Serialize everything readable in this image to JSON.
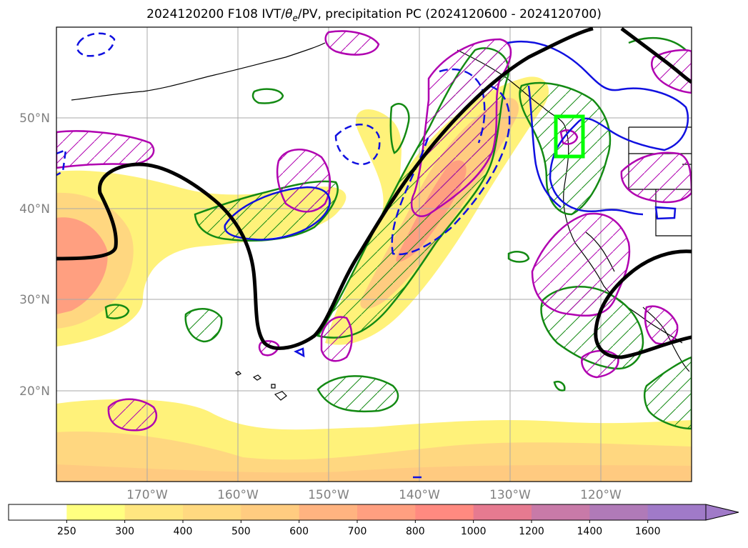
{
  "title": {
    "prefix": "2024120200 F108 IVT/",
    "theta": "θ",
    "theta_sub": "e",
    "suffix": "/PV, precipitation PC (2024120600 - 2024120700)"
  },
  "map": {
    "lat_labels": [
      "50°N",
      "40°N",
      "30°N",
      "20°N"
    ],
    "lon_labels": [
      "170°W",
      "160°W",
      "150°W",
      "140°W",
      "130°W",
      "120°W"
    ],
    "field_colors": {
      "ivt_fill": "#fff27a",
      "ivt_mid": "#ffd27a",
      "ivt_core": "#ff8f70",
      "pv_contour": "#000000",
      "precip_green": "#138a13",
      "theta_blue": "#1010e0",
      "theta_magenta": "#b000b0",
      "highlight_box": "#00ff00",
      "coastline": "#000000",
      "grid": "#a0a0a0"
    }
  },
  "colorbar": {
    "ticks": [
      "250",
      "300",
      "400",
      "500",
      "600",
      "700",
      "800",
      "1000",
      "1200",
      "1400",
      "1600"
    ],
    "colors": [
      "#ffffff",
      "#ffff80",
      "#ffe680",
      "#ffd980",
      "#ffcc80",
      "#ffb380",
      "#ff9f80",
      "#ff8a80",
      "#e67a90",
      "#c87aa8",
      "#b07ab8",
      "#a07ac8"
    ]
  }
}
